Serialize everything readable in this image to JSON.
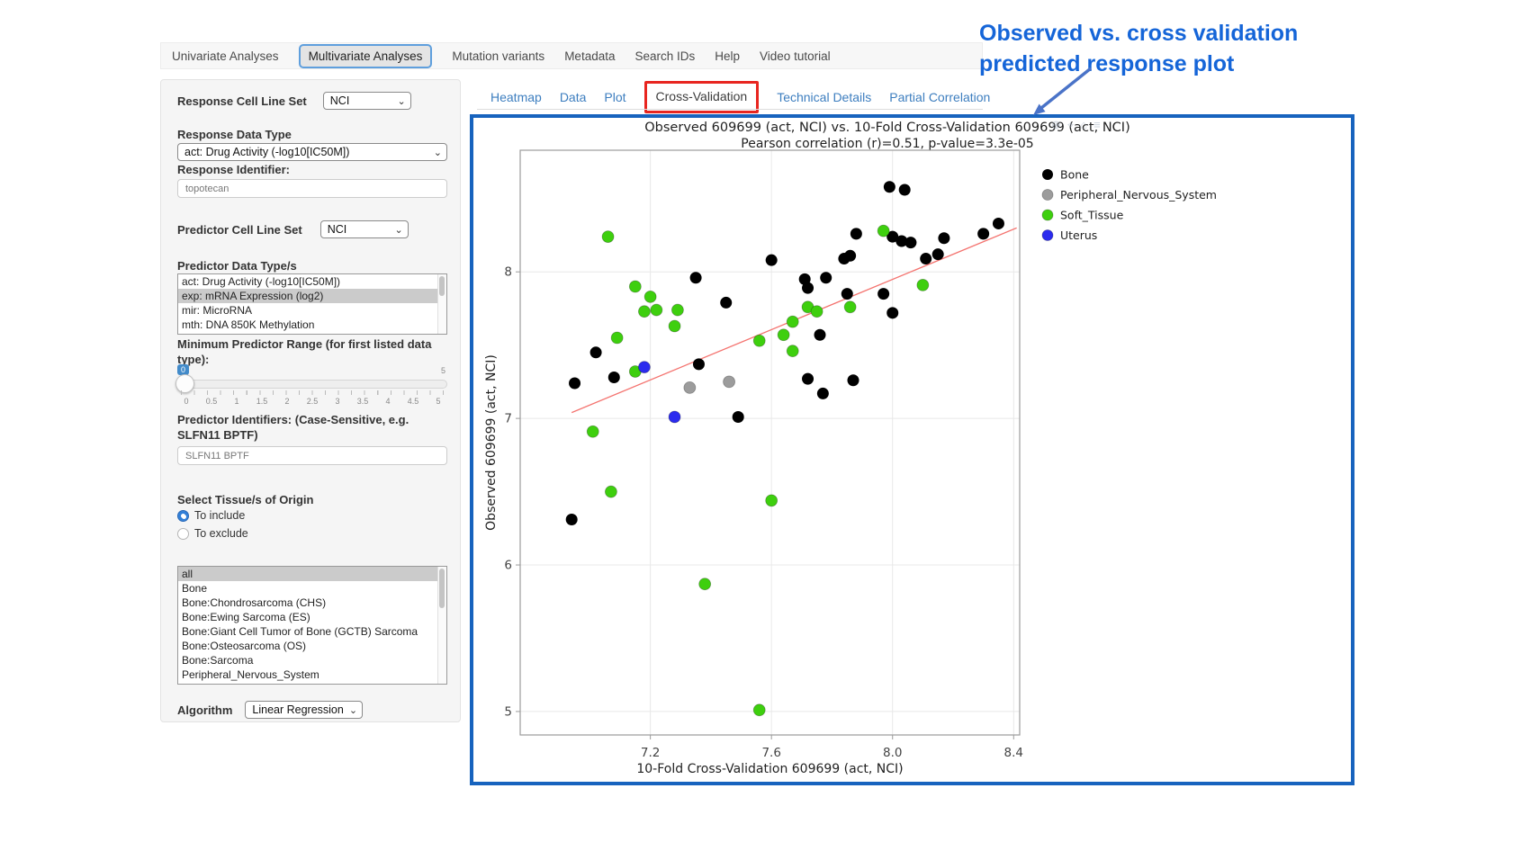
{
  "annotation": {
    "line1": "Observed vs. cross validation",
    "line2": "predicted response plot"
  },
  "colors": {
    "panel_border": "#1763be",
    "annotation_text": "#1565d8",
    "arrow": "#4a73c8",
    "red_highlight": "#e8251f",
    "tab_link_blue": "#3d7ebf",
    "slider_badge": "#428bca",
    "listbox_selection": "#cbcbcb"
  },
  "top_nav": {
    "items": [
      {
        "label": "Univariate Analyses",
        "active": false
      },
      {
        "label": "Multivariate Analyses",
        "active": true
      },
      {
        "label": "Mutation variants",
        "active": false
      },
      {
        "label": "Metadata",
        "active": false
      },
      {
        "label": "Search IDs",
        "active": false
      },
      {
        "label": "Help",
        "active": false
      },
      {
        "label": "Video tutorial",
        "active": false
      }
    ]
  },
  "sidebar": {
    "response_cell_line_set": {
      "label": "Response Cell Line Set",
      "value": "NCI"
    },
    "response_data_type": {
      "label": "Response Data Type",
      "value": "act: Drug Activity (-log10[IC50M])"
    },
    "response_identifier": {
      "label": "Response Identifier:",
      "value": "topotecan"
    },
    "predictor_cell_line_set": {
      "label": "Predictor Cell Line Set",
      "value": "NCI"
    },
    "predictor_data_types": {
      "label": "Predictor Data Type/s",
      "options": [
        "act: Drug Activity (-log10[IC50M])",
        "exp: mRNA Expression (log2)",
        "mir: MicroRNA",
        "mth: DNA 850K Methylation"
      ],
      "selected": "exp: mRNA Expression (log2)"
    },
    "min_predictor_range": {
      "label": "Minimum Predictor Range (for first listed data type):",
      "value": "0",
      "max_label": "5",
      "tick_labels": [
        "0",
        "0.5",
        "1",
        "1.5",
        "2",
        "2.5",
        "3",
        "3.5",
        "4",
        "4.5",
        "5"
      ]
    },
    "predictor_identifiers": {
      "label": "Predictor Identifiers: (Case-Sensitive, e.g. SLFN11 BPTF)",
      "value": "SLFN11 BPTF"
    },
    "tissue": {
      "label": "Select Tissue/s of Origin",
      "radio_include": "To include",
      "radio_exclude": "To exclude",
      "include_selected": true,
      "options": [
        "all",
        "Bone",
        "Bone:Chondrosarcoma (CHS)",
        "Bone:Ewing Sarcoma (ES)",
        "Bone:Giant Cell Tumor of Bone (GCTB) Sarcoma",
        "Bone:Osteosarcoma (OS)",
        "Bone:Sarcoma",
        "Peripheral_Nervous_System"
      ],
      "selected": "all"
    },
    "algorithm": {
      "label": "Algorithm",
      "value": "Linear Regression"
    }
  },
  "main_tabs": {
    "items": [
      {
        "label": "Heatmap",
        "active": false
      },
      {
        "label": "Data",
        "active": false
      },
      {
        "label": "Plot",
        "active": false
      },
      {
        "label": "Cross-Validation",
        "active": true,
        "red_highlight": true
      },
      {
        "label": "Technical Details",
        "active": false
      },
      {
        "label": "Partial Correlation",
        "active": false
      }
    ]
  },
  "modebar": {
    "icons": [
      {
        "name": "zoom-icon",
        "glyph": "⊕"
      },
      {
        "name": "pan-icon",
        "glyph": "⌖"
      },
      {
        "name": "home-icon",
        "glyph": "⌂"
      },
      {
        "name": "menu-icon",
        "glyph": "≡"
      }
    ]
  },
  "chart_data": {
    "type": "scatter",
    "title": "Observed 609699 (act, NCI) vs. 10-Fold Cross-Validation 609699 (act, NCI)",
    "subtitle": "Pearson correlation (r)=0.51, p-value=3.3e-05",
    "xlabel": "10-Fold Cross-Validation 609699 (act, NCI)",
    "ylabel": "Observed 609699 (act, NCI)",
    "xlim": [
      6.77,
      8.42
    ],
    "ylim": [
      4.84,
      8.83
    ],
    "xticks": [
      7.2,
      7.6,
      8.0,
      8.4
    ],
    "yticks": [
      5,
      6,
      7,
      8
    ],
    "grid": true,
    "legend_position": "right",
    "regression_line": {
      "x1": 6.94,
      "y1": 7.04,
      "x2": 8.41,
      "y2": 8.3,
      "color": "#f4736f"
    },
    "series": [
      {
        "name": "Bone",
        "color": "#000000",
        "points": [
          [
            7.99,
            8.58
          ],
          [
            8.04,
            8.56
          ],
          [
            7.88,
            8.26
          ],
          [
            8.0,
            8.24
          ],
          [
            8.03,
            8.21
          ],
          [
            8.06,
            8.2
          ],
          [
            8.17,
            8.23
          ],
          [
            8.3,
            8.26
          ],
          [
            8.35,
            8.33
          ],
          [
            7.6,
            8.08
          ],
          [
            7.84,
            8.09
          ],
          [
            7.86,
            8.11
          ],
          [
            8.11,
            8.09
          ],
          [
            8.15,
            8.12
          ],
          [
            7.35,
            7.96
          ],
          [
            7.71,
            7.95
          ],
          [
            7.78,
            7.96
          ],
          [
            7.72,
            7.89
          ],
          [
            7.85,
            7.85
          ],
          [
            7.97,
            7.85
          ],
          [
            7.45,
            7.79
          ],
          [
            8.0,
            7.72
          ],
          [
            7.76,
            7.57
          ],
          [
            7.02,
            7.45
          ],
          [
            7.36,
            7.37
          ],
          [
            7.72,
            7.27
          ],
          [
            6.95,
            7.24
          ],
          [
            7.08,
            7.28
          ],
          [
            7.87,
            7.26
          ],
          [
            7.77,
            7.17
          ],
          [
            7.49,
            7.01
          ],
          [
            6.94,
            6.31
          ]
        ]
      },
      {
        "name": "Peripheral_Nervous_System",
        "color": "#9c9c9c",
        "points": [
          [
            7.33,
            7.21
          ],
          [
            7.46,
            7.25
          ]
        ]
      },
      {
        "name": "Soft_Tissue",
        "color": "#3ecf0e",
        "points": [
          [
            7.06,
            8.24
          ],
          [
            7.97,
            8.28
          ],
          [
            7.15,
            7.9
          ],
          [
            8.1,
            7.91
          ],
          [
            7.2,
            7.83
          ],
          [
            7.18,
            7.73
          ],
          [
            7.22,
            7.74
          ],
          [
            7.29,
            7.74
          ],
          [
            7.72,
            7.76
          ],
          [
            7.75,
            7.73
          ],
          [
            7.86,
            7.76
          ],
          [
            7.28,
            7.63
          ],
          [
            7.67,
            7.66
          ],
          [
            7.64,
            7.57
          ],
          [
            7.09,
            7.55
          ],
          [
            7.56,
            7.53
          ],
          [
            7.67,
            7.46
          ],
          [
            7.15,
            7.32
          ],
          [
            7.01,
            6.91
          ],
          [
            7.07,
            6.5
          ],
          [
            7.6,
            6.44
          ],
          [
            7.38,
            5.87
          ],
          [
            7.56,
            5.01
          ]
        ]
      },
      {
        "name": "Uterus",
        "color": "#2b2bee",
        "points": [
          [
            7.18,
            7.35
          ],
          [
            7.28,
            7.01
          ]
        ]
      }
    ]
  }
}
